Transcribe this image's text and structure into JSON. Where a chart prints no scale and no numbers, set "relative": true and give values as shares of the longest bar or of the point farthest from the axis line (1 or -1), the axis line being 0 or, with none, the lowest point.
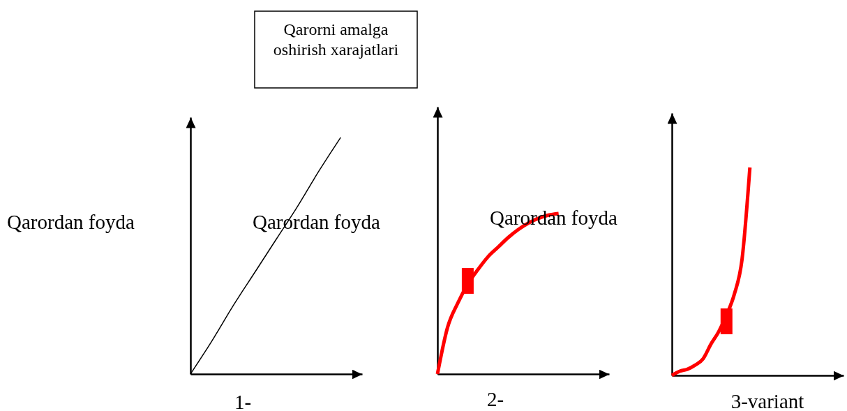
{
  "chart_data": [
    {
      "type": "line",
      "relative": true,
      "ylabel": "Qarordan foyda",
      "xlabel": "1-",
      "annotations": [
        "Qarorni amalga oshirish xarajatlari"
      ],
      "categories": [
        null,
        null,
        null,
        null,
        null,
        null,
        null,
        null,
        null
      ],
      "series": [
        {
          "name": "Qarordan foyda",
          "color": "#000000",
          "values": [
            0,
            0.14,
            0.29,
            0.43,
            0.57,
            0.71,
            0.86,
            1,
            null
          ]
        }
      ]
    },
    {
      "type": "line",
      "relative": true,
      "xlabel": "2-",
      "categories": [
        null,
        null,
        null,
        null,
        null,
        null,
        null,
        null,
        null,
        null,
        null,
        null,
        null,
        null,
        null,
        null,
        null,
        null
      ],
      "series": [
        {
          "name": "Qarordan foyda",
          "color": "#ff0000",
          "values": [
            0,
            0.29,
            0.44,
            0.56,
            0.65,
            0.73,
            0.79,
            0.85,
            0.9,
            0.94,
            0.97,
            0.99,
            1,
            null,
            null,
            null,
            null,
            null
          ]
        },
        {
          "marker": "square",
          "color": "#ff0000",
          "values": [
            null,
            null,
            null,
            0.58,
            null,
            null,
            null,
            null,
            null,
            null,
            null,
            null,
            null,
            null,
            null,
            null,
            null,
            null
          ]
        }
      ]
    },
    {
      "type": "line",
      "relative": true,
      "xlabel": "3-variant",
      "categories": [
        null,
        null,
        null,
        null,
        null,
        null,
        null,
        null,
        null,
        null,
        null,
        null,
        null,
        null,
        null,
        null,
        null,
        null,
        null,
        null,
        null,
        null,
        null
      ],
      "series": [
        {
          "color": "#ff0000",
          "values": [
            0,
            0.02,
            0.03,
            0.05,
            0.08,
            0.15,
            0.21,
            0.29,
            0.39,
            0.56,
            1,
            null,
            null,
            null,
            null,
            null,
            null,
            null,
            null,
            null,
            null,
            null,
            null
          ]
        },
        {
          "marker": "square",
          "color": "#ff0000",
          "values": [
            null,
            null,
            null,
            null,
            null,
            null,
            null,
            0.26,
            null,
            null,
            null,
            null,
            null,
            null,
            null,
            null,
            null,
            null,
            null,
            null,
            null,
            null,
            null
          ]
        }
      ]
    }
  ]
}
